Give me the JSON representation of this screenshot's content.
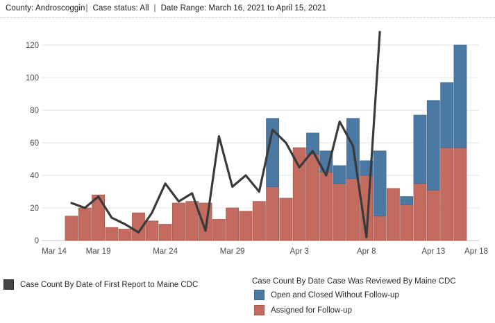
{
  "header": {
    "county": "County: Androscoggin",
    "separator": "|",
    "status": "Case status: All",
    "range": "Date Range: March 16, 2021 to April 15, 2021"
  },
  "legend": {
    "line_series_label": "Case Count By Date of First Report to Maine CDC",
    "bars_title": "Case Count By Date Case Was Reviewed By Maine CDC",
    "open_closed_label": "Open and Closed Without Follow-up",
    "assigned_label": "Assigned for Follow-up"
  },
  "colors": {
    "bar_red": "#c26b5e",
    "bar_red_border": "#a2564c",
    "bar_blue": "#4b79a3",
    "bar_blue_border": "#3a6790",
    "line": "#3a3a3a",
    "grid": "#e3e3e3",
    "axis_zero": "#c6c6c6",
    "axis_text": "#4a4a4a"
  },
  "chart_data": {
    "type": "bar",
    "subtype": "stacked-bars-with-line-overlay",
    "title": "",
    "xlabel": "",
    "ylabel": "",
    "grid": "horizontal",
    "legend_position": "bottom",
    "ylim": [
      0,
      130
    ],
    "y_ticks": [
      0,
      20,
      40,
      60,
      80,
      100,
      120
    ],
    "x_ticks": [
      {
        "label": "Mar 14",
        "day": -3
      },
      {
        "label": "Mar 19",
        "day": 2
      },
      {
        "label": "Mar 24",
        "day": 7
      },
      {
        "label": "Mar 29",
        "day": 12
      },
      {
        "label": "Apr 3",
        "day": 17
      },
      {
        "label": "Apr 8",
        "day": 22
      },
      {
        "label": "Apr 13",
        "day": 27
      },
      {
        "label": "Apr 18",
        "day": 32
      }
    ],
    "categories": [
      "Mar 17",
      "Mar 18",
      "Mar 19",
      "Mar 20",
      "Mar 21",
      "Mar 22",
      "Mar 23",
      "Mar 24",
      "Mar 25",
      "Mar 26",
      "Mar 27",
      "Mar 28",
      "Mar 29",
      "Mar 30",
      "Mar 31",
      "Apr 1",
      "Apr 2",
      "Apr 3",
      "Apr 4",
      "Apr 5",
      "Apr 6",
      "Apr 7",
      "Apr 8",
      "Apr 9",
      "Apr 10",
      "Apr 11",
      "Apr 12",
      "Apr 13",
      "Apr 14",
      "Apr 15"
    ],
    "series": [
      {
        "name": "Assigned for Follow-up",
        "type": "bar",
        "color": "#c26b5e",
        "values": [
          15,
          20,
          28,
          8,
          7,
          17,
          12,
          10,
          23,
          24,
          23,
          13,
          20,
          18,
          24,
          33,
          26,
          57,
          53,
          42,
          35,
          38,
          40,
          15,
          32,
          22,
          35,
          31,
          57,
          57
        ]
      },
      {
        "name": "Open and Closed Without Follow-up",
        "type": "bar",
        "color": "#4b79a3",
        "values": [
          0,
          0,
          0,
          0,
          0,
          0,
          0,
          0,
          0,
          0,
          0,
          0,
          0,
          0,
          0,
          42,
          0,
          0,
          13,
          13,
          11,
          37,
          9,
          40,
          0,
          5,
          42,
          55,
          40,
          63
        ]
      },
      {
        "name": "Case Count By Date of First Report to Maine CDC",
        "type": "line",
        "color": "#3a3a3a",
        "values": [
          23,
          20,
          27,
          14,
          10,
          5,
          17,
          35,
          24,
          29,
          6,
          64,
          33,
          40,
          30,
          68,
          60,
          45,
          55,
          40,
          73,
          58,
          2,
          128,
          null,
          null,
          null,
          null,
          null,
          null
        ]
      }
    ]
  }
}
